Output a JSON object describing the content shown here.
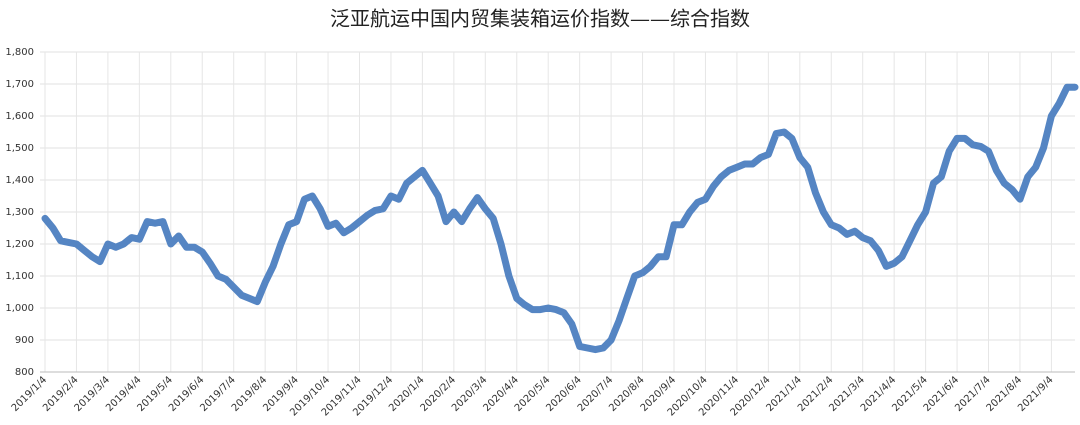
{
  "chart_data": {
    "type": "line",
    "title": "泛亚航运中国内贸集装箱运价指数——综合指数",
    "categories": [
      "2019/1/4",
      null,
      null,
      null,
      "2019/2/4",
      null,
      null,
      null,
      "2019/3/4",
      null,
      null,
      null,
      "2019/4/4",
      null,
      null,
      null,
      "2019/5/4",
      null,
      null,
      null,
      "2019/6/4",
      null,
      null,
      null,
      "2019/7/4",
      null,
      null,
      null,
      "2019/8/4",
      null,
      null,
      null,
      "2019/9/4",
      null,
      null,
      null,
      "2019/10/4",
      null,
      null,
      null,
      "2019/11/4",
      null,
      null,
      null,
      "2019/12/4",
      null,
      null,
      null,
      "2020/1/4",
      null,
      null,
      null,
      "2020/2/4",
      null,
      null,
      null,
      "2020/3/4",
      null,
      null,
      null,
      "2020/4/4",
      null,
      null,
      null,
      "2020/5/4",
      null,
      null,
      null,
      "2020/6/4",
      null,
      null,
      null,
      "2020/7/4",
      null,
      null,
      null,
      "2020/8/4",
      null,
      null,
      null,
      "2020/9/4",
      null,
      null,
      null,
      "2020/10/4",
      null,
      null,
      null,
      "2020/11/4",
      null,
      null,
      null,
      "2020/12/4",
      null,
      null,
      null,
      "2021/1/4",
      null,
      null,
      null,
      "2021/2/4",
      null,
      null,
      null,
      "2021/3/4",
      null,
      null,
      null,
      "2021/4/4",
      null,
      null,
      null,
      "2021/5/4",
      null,
      null,
      null,
      "2021/6/4",
      null,
      null,
      null,
      "2021/7/4",
      null,
      null,
      null,
      "2021/8/4",
      null,
      null,
      null,
      "2021/9/4",
      null,
      null,
      null
    ],
    "series": [
      {
        "name": "综合指数",
        "color": "#5585c3",
        "values": [
          1280,
          1250,
          1210,
          1205,
          1200,
          1180,
          1160,
          1145,
          1200,
          1190,
          1200,
          1220,
          1215,
          1270,
          1265,
          1270,
          1200,
          1225,
          1190,
          1190,
          1175,
          1140,
          1100,
          1090,
          1065,
          1040,
          1030,
          1020,
          1080,
          1130,
          1200,
          1260,
          1270,
          1340,
          1350,
          1310,
          1255,
          1265,
          1235,
          1250,
          1270,
          1290,
          1305,
          1310,
          1350,
          1340,
          1390,
          1410,
          1430,
          1390,
          1350,
          1270,
          1300,
          1270,
          1310,
          1345,
          1310,
          1280,
          1200,
          1100,
          1030,
          1010,
          995,
          995,
          1000,
          995,
          985,
          950,
          880,
          875,
          870,
          875,
          900,
          960,
          1030,
          1100,
          1110,
          1130,
          1160,
          1160,
          1260,
          1260,
          1300,
          1330,
          1340,
          1380,
          1410,
          1430,
          1440,
          1450,
          1450,
          1470,
          1480,
          1545,
          1550,
          1530,
          1470,
          1440,
          1360,
          1300,
          1260,
          1250,
          1230,
          1240,
          1220,
          1210,
          1180,
          1130,
          1140,
          1160,
          1210,
          1260,
          1300,
          1390,
          1410,
          1490,
          1530,
          1530,
          1510,
          1505,
          1490,
          1430,
          1390,
          1370,
          1340,
          1410,
          1440,
          1500,
          1600,
          1640,
          1690,
          1690
        ]
      }
    ],
    "ylim": [
      800,
      1800
    ],
    "yticks": [
      800,
      900,
      {
        "value": 1000,
        "label": "1,000"
      },
      {
        "value": 1100,
        "label": "1,100"
      },
      {
        "value": 1200,
        "label": "1,200"
      },
      {
        "value": 1300,
        "label": "1,300"
      },
      {
        "value": 1400,
        "label": "1,400"
      },
      {
        "value": 1500,
        "label": "1,500"
      },
      {
        "value": 1600,
        "label": "1,600"
      },
      {
        "value": 1700,
        "label": "1,700"
      },
      {
        "value": 1800,
        "label": "1,800"
      }
    ],
    "grid": true
  }
}
